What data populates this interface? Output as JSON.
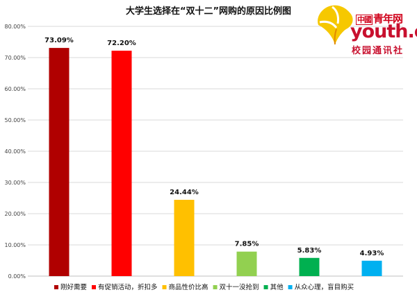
{
  "chart_data": {
    "type": "bar",
    "title": "大学生选择在“双十二”网购的原因比例图",
    "categories": [
      "刚好需要",
      "有促销活动，折扣多",
      "商品性价比高",
      "双十一没抢到",
      "其他",
      "从众心理，盲目购买"
    ],
    "values": [
      73.09,
      72.2,
      24.44,
      7.85,
      5.83,
      4.93
    ],
    "data_labels": [
      "73.09%",
      "72.20%",
      "24.44%",
      "7.85%",
      "5.83%",
      "4.93%"
    ],
    "colors": [
      "#b00000",
      "#ff0000",
      "#ffc000",
      "#92d050",
      "#00b050",
      "#00b0f0"
    ],
    "ylim": [
      0,
      80
    ],
    "yticks": [
      0,
      10,
      20,
      30,
      40,
      50,
      60,
      70,
      80
    ],
    "ytick_labels": [
      "0.00%",
      "10.00%",
      "20.00%",
      "30.00%",
      "40.00%",
      "50.00%",
      "60.00%",
      "70.00%",
      "80.00%"
    ],
    "xlabel": "",
    "ylabel": "",
    "grid": true,
    "legend": "bottom"
  },
  "logo": {
    "cn_prefix": "中國",
    "cn_name": "青年网",
    "en": "youth.cn",
    "sub": "校园通讯社",
    "colors": {
      "leaf": "#f6c800",
      "leaf_dark": "#e08a00",
      "text": "#c8102e"
    }
  }
}
